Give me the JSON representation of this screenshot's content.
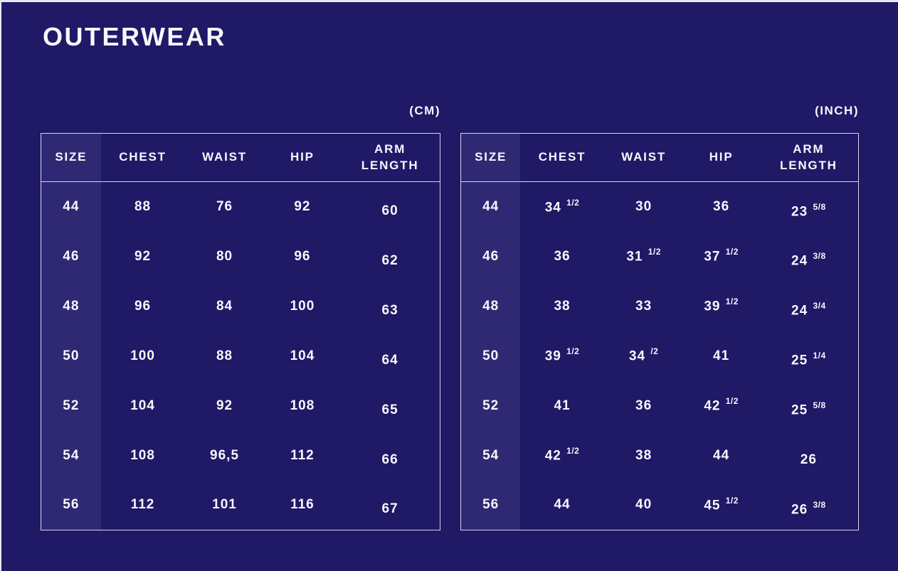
{
  "page": {
    "title": "OUTERWEAR",
    "background_color": "#1f1966",
    "size_column_color": "#2f2973",
    "border_color": "#d6d5ea",
    "text_color": "#f9f8fd"
  },
  "tables": [
    {
      "id": "cm",
      "unit_label": "(CM)",
      "columns": [
        "SIZE",
        "CHEST",
        "WAIST",
        "HIP",
        "ARM\nLENGTH"
      ],
      "rows": [
        [
          "44",
          "88",
          "76",
          "92",
          "60"
        ],
        [
          "46",
          "92",
          "80",
          "96",
          "62"
        ],
        [
          "48",
          "96",
          "84",
          "100",
          "63"
        ],
        [
          "50",
          "100",
          "88",
          "104",
          "64"
        ],
        [
          "52",
          "104",
          "92",
          "108",
          "65"
        ],
        [
          "54",
          "108",
          "96,5",
          "112",
          "66"
        ],
        [
          "56",
          "112",
          "101",
          "116",
          "67"
        ]
      ]
    },
    {
      "id": "inch",
      "unit_label": "(INCH)",
      "columns": [
        "SIZE",
        "CHEST",
        "WAIST",
        "HIP",
        "ARM\nLENGTH"
      ],
      "rows": [
        [
          "44",
          "34 ^1/2",
          "30",
          "36",
          "23 ^5/8"
        ],
        [
          "46",
          "36",
          "31 ^1/2",
          "37 ^1/2",
          "24 ^3/8"
        ],
        [
          "48",
          "38",
          "33",
          "39 ^1/2",
          "24 ^3/4"
        ],
        [
          "50",
          "39 ^1/2",
          "34 ^/2",
          "41",
          "25 ^1/4"
        ],
        [
          "52",
          "41",
          "36",
          "42 ^1/2",
          "25 ^5/8"
        ],
        [
          "54",
          "42 ^1/2",
          "38",
          "44",
          "26"
        ],
        [
          "56",
          "44",
          "40",
          "45 ^1/2",
          "26 ^3/8"
        ]
      ]
    }
  ]
}
